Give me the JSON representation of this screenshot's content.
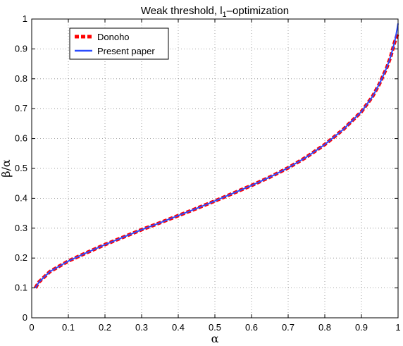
{
  "chart_data": {
    "type": "line",
    "title": "Weak threshold, l",
    "title_subscript": "1",
    "title_suffix": "–optimization",
    "xlabel": "α",
    "ylabel": "β/α",
    "xlim": [
      0,
      1
    ],
    "ylim": [
      0,
      1
    ],
    "xticks": [
      0,
      0.1,
      0.2,
      0.3,
      0.4,
      0.5,
      0.6,
      0.7,
      0.8,
      0.9,
      1
    ],
    "yticks": [
      0,
      0.1,
      0.2,
      0.3,
      0.4,
      0.5,
      0.6,
      0.7,
      0.8,
      0.9,
      1
    ],
    "xtick_labels": [
      "0",
      "0.1",
      "0.2",
      "0.3",
      "0.4",
      "0.5",
      "0.6",
      "0.7",
      "0.8",
      "0.9",
      "1"
    ],
    "ytick_labels": [
      "0",
      "0.1",
      "0.2",
      "0.3",
      "0.4",
      "0.5",
      "0.6",
      "0.7",
      "0.8",
      "0.9",
      "1"
    ],
    "grid": true,
    "legend_position": "top-left",
    "series": [
      {
        "name": "Donoho",
        "color": "#ff0000",
        "style": "dashed",
        "x": [
          0.01,
          0.02,
          0.05,
          0.1,
          0.15,
          0.2,
          0.25,
          0.3,
          0.35,
          0.4,
          0.45,
          0.5,
          0.55,
          0.6,
          0.65,
          0.7,
          0.75,
          0.8,
          0.85,
          0.9,
          0.93,
          0.95,
          0.97,
          0.98,
          0.99,
          1.0
        ],
        "y": [
          0.1,
          0.12,
          0.155,
          0.19,
          0.218,
          0.245,
          0.27,
          0.295,
          0.318,
          0.342,
          0.366,
          0.391,
          0.417,
          0.443,
          0.471,
          0.502,
          0.538,
          0.58,
          0.63,
          0.69,
          0.74,
          0.785,
          0.84,
          0.875,
          0.92,
          0.955
        ]
      },
      {
        "name": "Present paper",
        "color": "#2b4cff",
        "style": "solid",
        "x": [
          0.01,
          0.02,
          0.05,
          0.1,
          0.15,
          0.2,
          0.25,
          0.3,
          0.35,
          0.4,
          0.45,
          0.5,
          0.55,
          0.6,
          0.65,
          0.7,
          0.75,
          0.8,
          0.85,
          0.9,
          0.93,
          0.95,
          0.97,
          0.98,
          0.99,
          0.995,
          1.0
        ],
        "y": [
          0.1,
          0.12,
          0.155,
          0.19,
          0.218,
          0.245,
          0.27,
          0.295,
          0.318,
          0.342,
          0.366,
          0.391,
          0.417,
          0.443,
          0.471,
          0.502,
          0.538,
          0.58,
          0.63,
          0.69,
          0.74,
          0.785,
          0.84,
          0.875,
          0.92,
          0.95,
          0.985
        ]
      }
    ]
  }
}
